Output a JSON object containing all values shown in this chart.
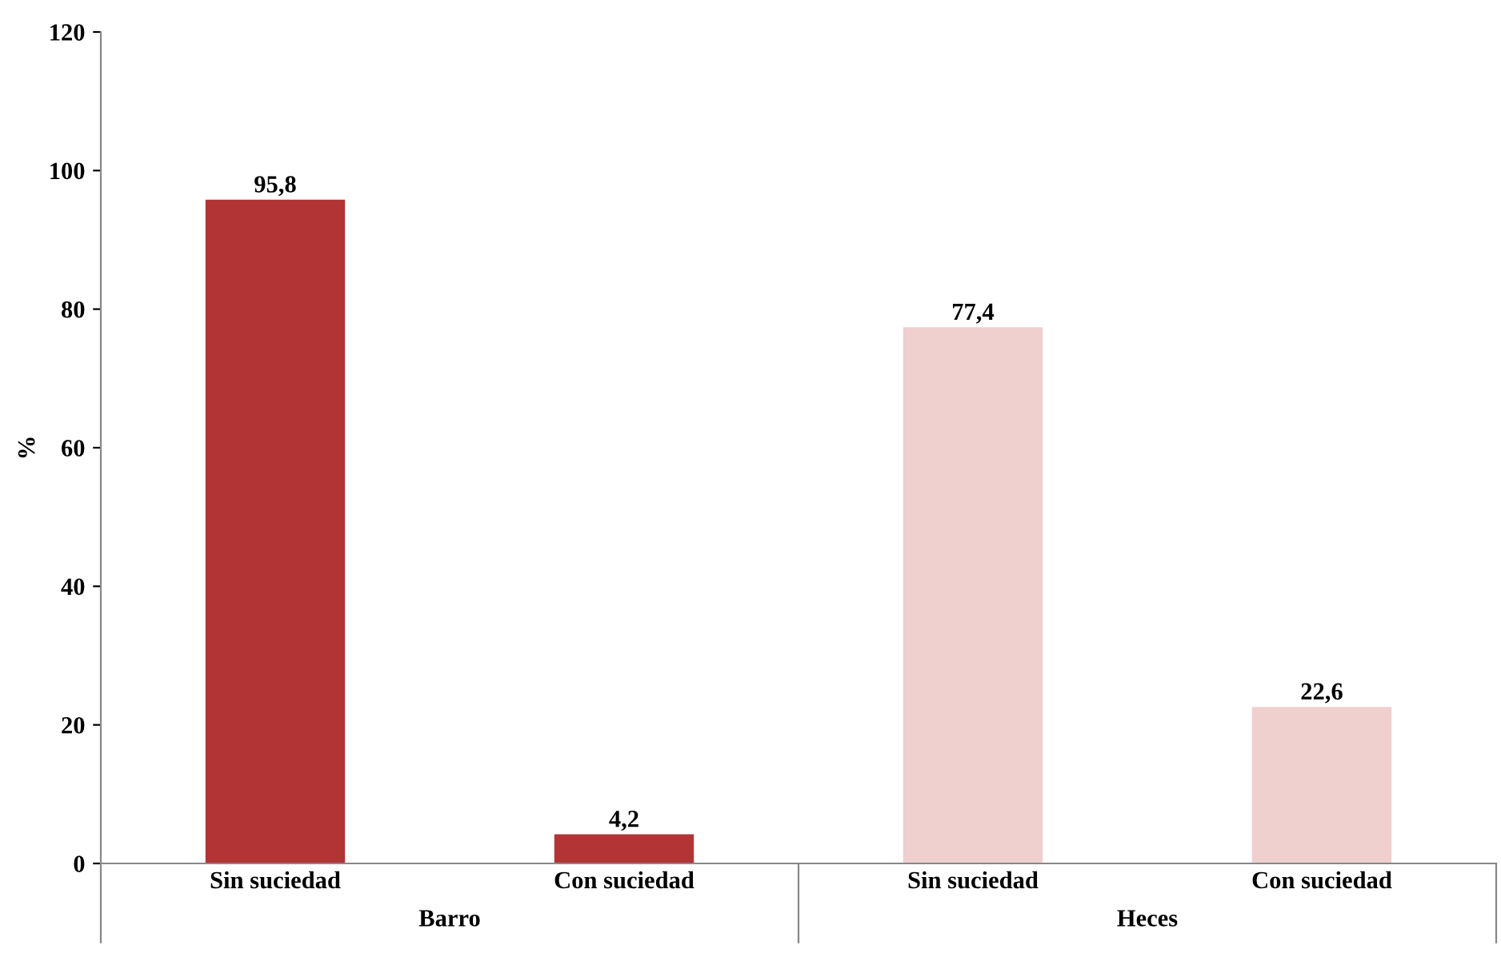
{
  "chart_data": {
    "type": "bar",
    "ylabel": "%",
    "categories": [
      "Sin suciedad",
      "Con suciedad",
      "Sin suciedad",
      "Con suciedad"
    ],
    "values": [
      95.8,
      4.2,
      77.4,
      22.6
    ],
    "colors": [
      "#b33434",
      "#b33434",
      "#f0cfcf",
      "#f0cfcf"
    ],
    "value_labels": [
      "95,8",
      "4,2",
      "77,4",
      "22,6"
    ],
    "annotations": [
      "Barro",
      "Heces"
    ],
    "ylim": [
      0,
      120
    ],
    "yticks": [
      0,
      20,
      40,
      60,
      80,
      100,
      120
    ],
    "grid": false,
    "legend": false
  }
}
